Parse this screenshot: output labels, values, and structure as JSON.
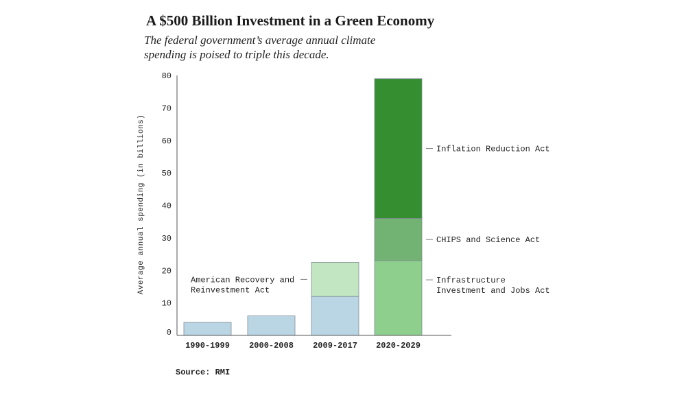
{
  "title": "A $500 Billion Investment in a Green Economy",
  "subtitle": "The federal government’s average annual climate spending is poised to triple this decade.",
  "source": "Source: RMI",
  "chart_data": {
    "type": "bar",
    "stacked": true,
    "title": "A $500 Billion Investment in a Green Economy",
    "subtitle": "The federal government’s average annual climate spending is poised to triple this decade.",
    "xlabel": "",
    "ylabel": "Average annual spending (in billions)",
    "ylim": [
      0,
      80
    ],
    "yticks": [
      0,
      10,
      20,
      30,
      40,
      50,
      60,
      70,
      80
    ],
    "grid": false,
    "categories": [
      "1990-1999",
      "2000-2008",
      "2009-2017",
      "2020-2029"
    ],
    "series": [
      {
        "id": "base",
        "values": [
          4,
          6,
          12,
          23
        ],
        "color": "#bad6e5",
        "color_2020": "#8ecf8e"
      },
      {
        "id": "arra",
        "values": [
          0,
          0,
          10.5,
          0
        ],
        "color": "#c2e6c2"
      },
      {
        "id": "chips",
        "values": [
          0,
          0,
          0,
          13
        ],
        "color": "#72b272"
      },
      {
        "id": "ira",
        "values": [
          0,
          0,
          0,
          43
        ],
        "color": "#358f31"
      }
    ],
    "annotations": [
      {
        "id": "arra",
        "lines": [
          "American Recovery and",
          "Reinvestment Act"
        ],
        "category": "2009-2017",
        "side": "left"
      },
      {
        "id": "ira",
        "lines": [
          "Inflation Reduction Act"
        ],
        "category": "2020-2029",
        "side": "right"
      },
      {
        "id": "chips",
        "lines": [
          "CHIPS and Science Act"
        ],
        "category": "2020-2029",
        "side": "right"
      },
      {
        "id": "base",
        "lines": [
          "Infrastructure",
          "Investment and Jobs Act"
        ],
        "category": "2020-2029",
        "side": "right"
      }
    ]
  }
}
